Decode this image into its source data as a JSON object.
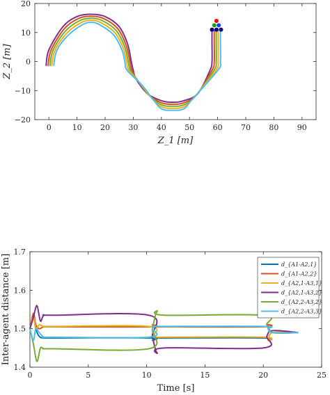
{
  "chart_data": [
    {
      "type": "line",
      "xlabel": "Z_1 [m]",
      "ylabel": "Z_2 [m]",
      "xlim": [
        -5,
        95
      ],
      "ylim": [
        -20,
        20
      ],
      "xticks": [
        "0",
        "10",
        "20",
        "30",
        "40",
        "50",
        "60",
        "70",
        "80",
        "90"
      ],
      "yticks": [
        "20",
        "10",
        "0",
        "-10",
        "-20"
      ],
      "grid": false,
      "description_of_path": "S-shaped trajectories: upper semicircle centered at (15,-1.5), lower semicircle centered at (44,-1.5), vertical rise near x=58-62",
      "series": [
        {
          "color": "#7E2F8E",
          "x": [
            -1,
            0,
            5,
            10,
            15,
            20,
            25,
            28,
            29.3,
            30,
            31,
            35,
            40,
            44,
            48,
            53,
            57.3,
            58,
            58,
            58
          ],
          "y": [
            -1.5,
            4,
            12,
            15.5,
            16.3,
            15.5,
            12,
            6,
            0,
            -3,
            -6,
            -11,
            -13.5,
            -14,
            -13.5,
            -11,
            -3,
            0,
            6,
            11
          ]
        },
        {
          "color": "#D95319",
          "x": [
            -0.3,
            0.8,
            5.5,
            10.5,
            15,
            19.5,
            24.5,
            27.5,
            28.8,
            29.5,
            31.5,
            35.5,
            40,
            44,
            48,
            52.5,
            58,
            58.8,
            58.8,
            58.8
          ],
          "y": [
            -1.5,
            4,
            11.3,
            14.8,
            15.6,
            14.8,
            11.3,
            5.5,
            0,
            -3,
            -6.5,
            -11.5,
            -14.2,
            -14.7,
            -14.2,
            -11.5,
            -3,
            0,
            6,
            11
          ]
        },
        {
          "color": "#77AC30",
          "x": [
            0.4,
            1.5,
            6,
            11,
            15,
            19,
            24,
            27,
            28.2,
            29,
            32,
            36,
            40,
            44,
            48,
            52,
            58.7,
            59.5,
            59.5,
            59.5
          ],
          "y": [
            -1.5,
            4,
            10.6,
            14.1,
            14.9,
            14.1,
            10.6,
            5,
            0,
            -3,
            -7,
            -12,
            -14.9,
            -15.4,
            -14.9,
            -12,
            -3,
            0,
            6,
            11
          ]
        },
        {
          "color": "#EDB120",
          "x": [
            1.0,
            2.2,
            6.5,
            11.5,
            15,
            18.5,
            23.5,
            26.5,
            27.6,
            28.4,
            32.5,
            36.5,
            40,
            44,
            48,
            51.5,
            59.4,
            60.2,
            60.2,
            60.2
          ],
          "y": [
            -1.5,
            4,
            9.9,
            13.4,
            14.2,
            13.4,
            9.9,
            4.5,
            0,
            -3,
            -7.5,
            -12.5,
            -15.6,
            -16.1,
            -15.6,
            -12.5,
            -3,
            0,
            6,
            11
          ]
        },
        {
          "color": "#4DBEEE",
          "x": [
            1.7,
            2.9,
            7,
            12,
            15,
            18,
            23,
            26,
            27,
            27.8,
            33,
            37,
            40,
            44,
            48,
            51,
            60.1,
            61,
            61,
            61
          ],
          "y": [
            -1.5,
            4,
            9.2,
            12.7,
            13.5,
            12.7,
            9.2,
            4,
            0,
            -3,
            -8,
            -13,
            -16.3,
            -16.8,
            -16.3,
            -13,
            -3,
            0,
            6,
            11
          ]
        }
      ],
      "agents": [
        {
          "color": "#FF0000",
          "x": 59.6,
          "y": 14
        },
        {
          "color": "#00AA00",
          "x": 58.8,
          "y": 12.5
        },
        {
          "color": "#1E3CFF",
          "x": 60.4,
          "y": 12.5
        },
        {
          "color": "#000080",
          "x": 58.0,
          "y": 11
        },
        {
          "color": "#000080",
          "x": 59.6,
          "y": 11
        },
        {
          "color": "#000080",
          "x": 61.2,
          "y": 11
        }
      ]
    },
    {
      "type": "line",
      "xlabel": "Time [s]",
      "ylabel": "Inter-agent distance [m]",
      "xlim": [
        0,
        25
      ],
      "ylim": [
        1.4,
        1.7
      ],
      "xticks": [
        "0",
        "5",
        "10",
        "15",
        "20",
        "25"
      ],
      "yticks": [
        "1.7",
        "1.6",
        "1.5",
        "1.4"
      ],
      "grid": false,
      "legend_position": "top-right",
      "series": [
        {
          "name": "d_{A1-A2,1}",
          "color": "#0072BD",
          "x": [
            0,
            0.3,
            0.5,
            0.8,
            1.2,
            2,
            10.2,
            10.5,
            10.8,
            11.5,
            20.0,
            20.4,
            20.8,
            23
          ],
          "y": [
            1.5,
            1.53,
            1.5,
            1.48,
            1.476,
            1.476,
            1.476,
            1.47,
            1.476,
            1.476,
            1.476,
            1.47,
            1.49,
            1.49
          ]
        },
        {
          "name": "d_{A1-A2,2}",
          "color": "#D95319",
          "x": [
            0,
            0.3,
            0.5,
            0.8,
            1.2,
            2,
            10.2,
            10.5,
            10.8,
            11.5,
            20.0,
            20.4,
            20.8,
            23
          ],
          "y": [
            1.5,
            1.54,
            1.51,
            1.5,
            1.505,
            1.505,
            1.505,
            1.51,
            1.505,
            1.505,
            1.505,
            1.51,
            1.49,
            1.49
          ]
        },
        {
          "name": "d_{A2,1-A3,1}",
          "color": "#EDB120",
          "x": [
            0,
            0.3,
            0.5,
            0.8,
            1.2,
            2,
            10.2,
            10.5,
            10.8,
            11.5,
            20.0,
            20.4,
            20.8,
            23
          ],
          "y": [
            1.5,
            1.53,
            1.5,
            1.51,
            1.506,
            1.506,
            1.506,
            1.48,
            1.478,
            1.478,
            1.478,
            1.47,
            1.49,
            1.49
          ]
        },
        {
          "name": "d_{A2,1-A3,2}",
          "color": "#7E2F8E",
          "x": [
            0,
            0.3,
            0.6,
            0.9,
            1.2,
            2,
            10.2,
            10.5,
            10.9,
            11.5,
            20.0,
            20.3,
            20.8,
            23
          ],
          "y": [
            1.5,
            1.53,
            1.56,
            1.52,
            1.535,
            1.535,
            1.535,
            1.48,
            1.437,
            1.45,
            1.45,
            1.48,
            1.495,
            1.49
          ]
        },
        {
          "name": "d_{A2,2-A3,2}",
          "color": "#77AC30",
          "x": [
            0,
            0.3,
            0.6,
            0.9,
            1.2,
            2,
            10.2,
            10.5,
            10.9,
            11.5,
            20.0,
            20.3,
            20.8,
            23
          ],
          "y": [
            1.5,
            1.46,
            1.415,
            1.45,
            1.448,
            1.448,
            1.448,
            1.5,
            1.545,
            1.535,
            1.535,
            1.51,
            1.49,
            1.49
          ]
        },
        {
          "name": "d_{A2,2-A3,3}",
          "color": "#4DBEEE",
          "x": [
            0,
            0.3,
            0.5,
            0.8,
            1.2,
            2,
            10.2,
            10.5,
            10.8,
            11.5,
            20.0,
            20.4,
            20.8,
            23
          ],
          "y": [
            1.5,
            1.47,
            1.5,
            1.49,
            1.478,
            1.478,
            1.478,
            1.5,
            1.506,
            1.506,
            1.506,
            1.5,
            1.49,
            1.49
          ]
        }
      ]
    }
  ]
}
